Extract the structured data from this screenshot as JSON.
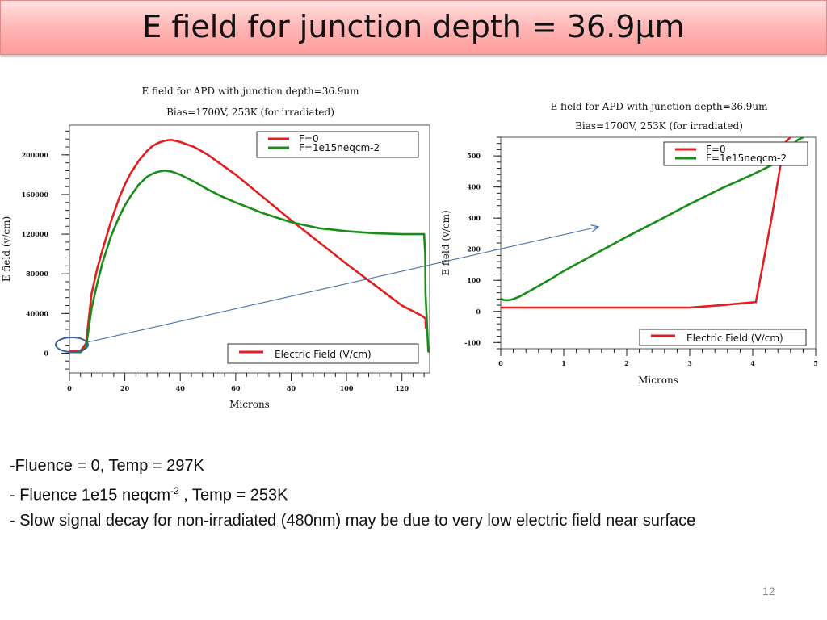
{
  "slide": {
    "title": "E field for junction depth = 36.9µm",
    "page_number": "12",
    "notes": [
      {
        "text": "-Fluence = 0,  Temp = 297K"
      },
      {
        "text": "- Fluence 1e15 neqcm",
        "sup": "-2",
        "after": " , Temp = 253K"
      },
      {
        "text": "- Slow signal decay for non-irradiated (480nm) may be due to very low electric field near surface"
      }
    ]
  },
  "chart_data": [
    {
      "type": "line",
      "title": "E field for APD with junction depth=36.9um",
      "subtitle": "Bias=1700V, 253K (for irradiated)",
      "xlabel": "Microns",
      "ylabel": "E field (v/cm)",
      "xlim": [
        0,
        130
      ],
      "ylim": [
        -20000,
        230000
      ],
      "xticks": [
        0,
        20,
        40,
        60,
        80,
        100,
        120
      ],
      "yticks": [
        0,
        40000,
        80000,
        120000,
        160000,
        200000
      ],
      "legend_series": [
        "F=0",
        "F=1e15neqcm-2"
      ],
      "legend_field": "Electric Field (V/cm)",
      "colors": {
        "F=0": "#e02020",
        "F=1e15neqcm-2": "#1a8c1a"
      },
      "series": [
        {
          "name": "F=0",
          "x": [
            0,
            4,
            6,
            8,
            10,
            12,
            15,
            18,
            20,
            22,
            25,
            28,
            30,
            32,
            34,
            36,
            37,
            40,
            45,
            50,
            60,
            70,
            80,
            90,
            100,
            110,
            120,
            127,
            128.5,
            128.6
          ],
          "y": [
            2000,
            2000,
            10000,
            60000,
            85000,
            105000,
            133000,
            157000,
            170000,
            181000,
            194000,
            204000,
            209000,
            212000,
            214000,
            215000,
            215000,
            213000,
            208000,
            200000,
            180000,
            157000,
            134000,
            112000,
            90000,
            69000,
            48000,
            38000,
            35000,
            25000
          ]
        },
        {
          "name": "F=1e15neqcm-2",
          "x": [
            0,
            4,
            6,
            8,
            10,
            12,
            15,
            18,
            20,
            22,
            25,
            28,
            30,
            32,
            34,
            35,
            37,
            40,
            45,
            50,
            55,
            60,
            70,
            80,
            90,
            100,
            110,
            120,
            128,
            128.4,
            128.5,
            129.5,
            130
          ],
          "y": [
            1000,
            1000,
            6000,
            45000,
            70000,
            92000,
            118000,
            138000,
            149000,
            158000,
            170000,
            178000,
            181000,
            183000,
            184000,
            184000,
            183000,
            180000,
            173000,
            165000,
            158000,
            152000,
            141000,
            132000,
            126000,
            123000,
            121000,
            120000,
            120000,
            100000,
            60000,
            2000,
            1000
          ]
        }
      ]
    },
    {
      "type": "line",
      "title": "E field for APD with junction depth=36.9um",
      "subtitle": "Bias=1700V, 253K (for irradiated)",
      "xlabel": "Microns",
      "ylabel": "E field (v/cm)",
      "xlim": [
        0,
        5
      ],
      "ylim": [
        -120,
        560
      ],
      "xticks": [
        0,
        1,
        2,
        3,
        4,
        5
      ],
      "yticks": [
        -100,
        0,
        100,
        200,
        300,
        400,
        500
      ],
      "legend_series": [
        "F=0",
        "F=1e15neqcm-2"
      ],
      "legend_field": "Electric Field (V/cm)",
      "colors": {
        "F=0": "#e02020",
        "F=1e15neqcm-2": "#1a8c1a"
      },
      "series": [
        {
          "name": "F=0",
          "x": [
            0,
            1,
            2,
            3,
            3.1,
            3.5,
            4.05,
            4.3,
            4.5,
            4.6
          ],
          "y": [
            12,
            12,
            12,
            12,
            14,
            20,
            30,
            300,
            540,
            560
          ]
        },
        {
          "name": "F=1e15neqcm-2",
          "x": [
            0,
            0.05,
            0.1,
            0.15,
            0.2,
            0.3,
            0.5,
            0.8,
            1.0,
            1.5,
            2.0,
            2.5,
            3.0,
            3.5,
            4.0,
            4.3,
            4.5,
            4.7,
            4.85
          ],
          "y": [
            40,
            37,
            36,
            37,
            40,
            48,
            70,
            105,
            130,
            185,
            240,
            292,
            345,
            395,
            440,
            470,
            510,
            550,
            565
          ]
        }
      ]
    }
  ]
}
